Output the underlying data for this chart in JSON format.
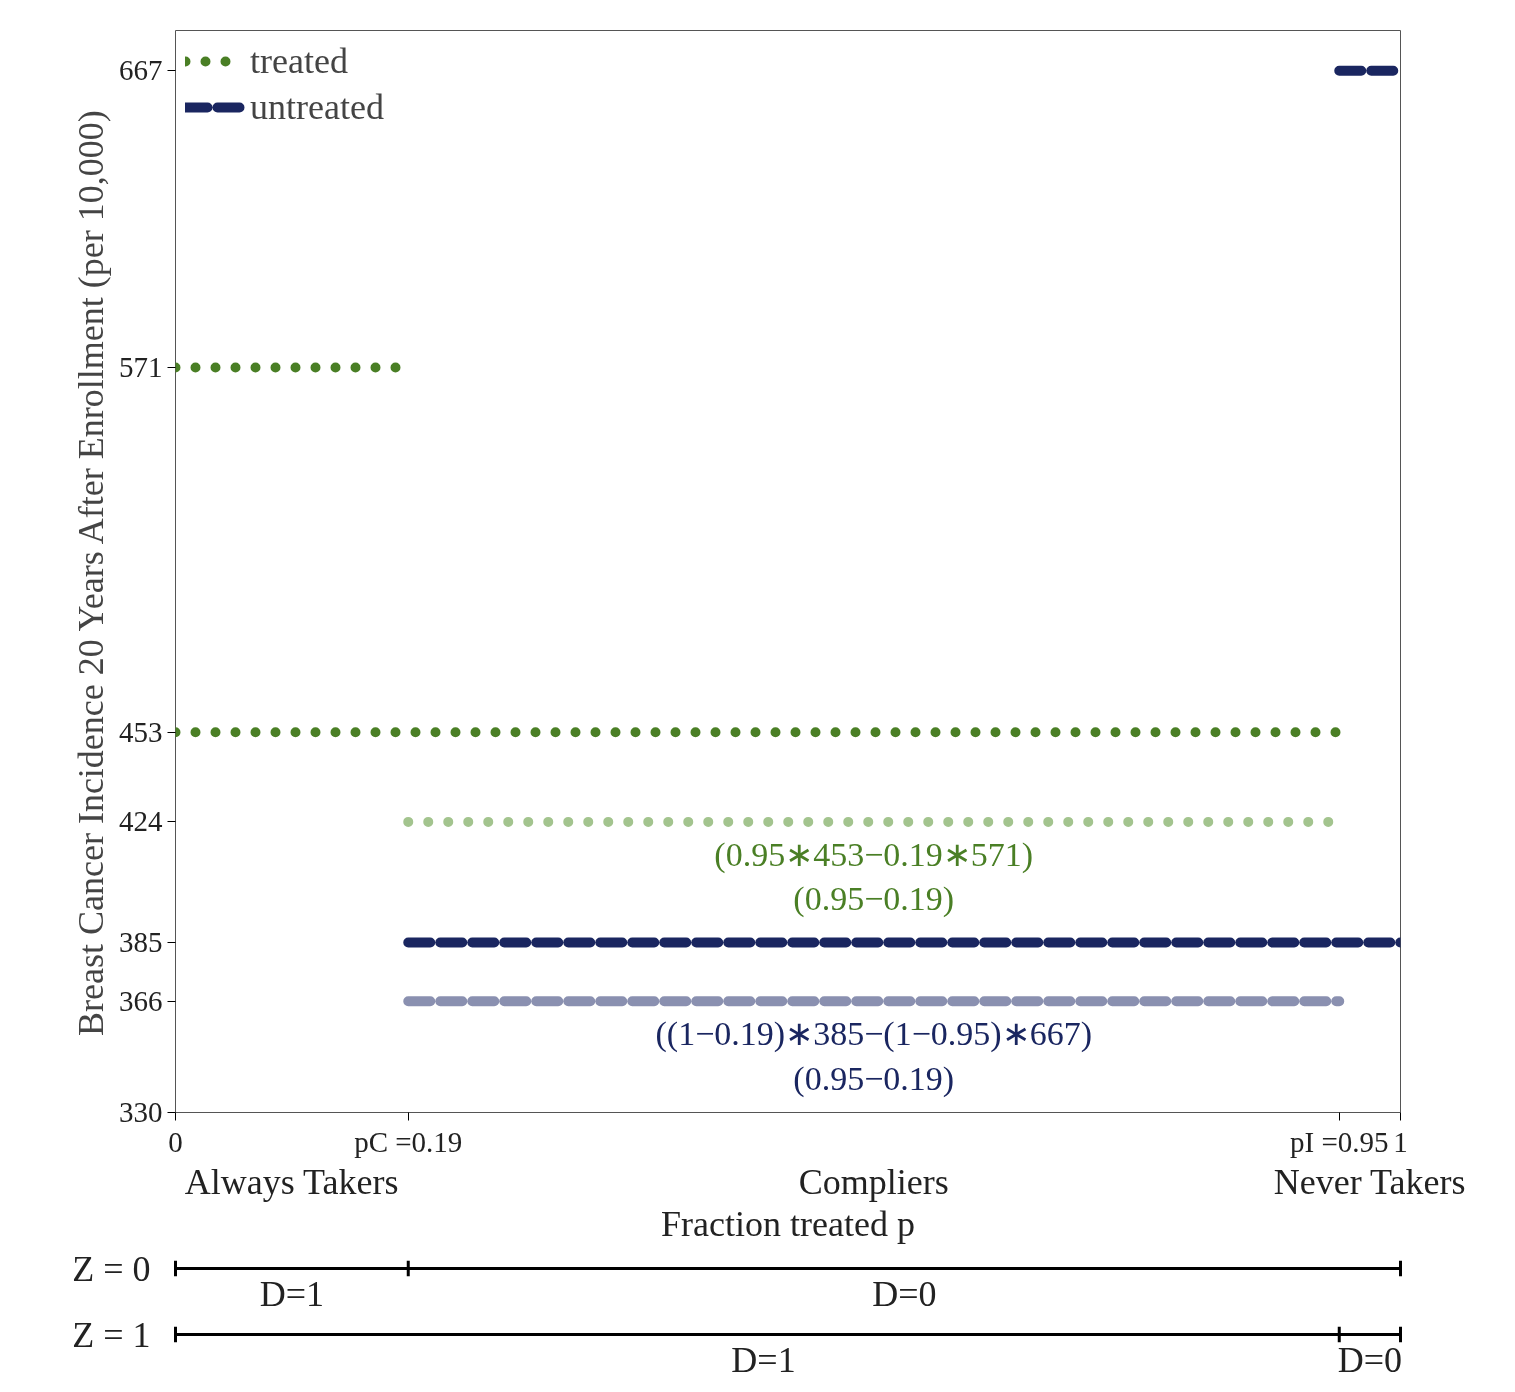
{
  "chart_data": {
    "type": "line",
    "xlabel": "Fraction treated p",
    "ylabel": "Breast Cancer Incidence 20 Years After Enrollment (per 10,000)",
    "xlim": [
      0,
      1
    ],
    "ylim": [
      330,
      680
    ],
    "xticks": [
      0,
      {
        "value": 0.19,
        "label": "pC =0.19"
      },
      {
        "value": 0.95,
        "label": "pI =0.95"
      },
      1
    ],
    "yticks": [
      330,
      366,
      385,
      424,
      453,
      571,
      667
    ],
    "grid": false,
    "legend": "top left",
    "series": [
      {
        "name": "treated",
        "color": "#4a7f25",
        "line_style": "dotted",
        "x": [
          0,
          0.19,
          null,
          0,
          0.95
        ],
        "values": [
          571,
          571,
          null,
          453,
          453
        ]
      },
      {
        "name": "untreated",
        "color": "#1a2660",
        "line_style": "dashed",
        "x": [
          0.95,
          1,
          null,
          0.19,
          1
        ],
        "values": [
          667,
          667,
          null,
          385,
          385
        ]
      },
      {
        "color": "#a3c48e",
        "line_style": "dotted",
        "x": [
          0.19,
          0.95
        ],
        "values": [
          424,
          424
        ]
      },
      {
        "color": "#8a90b0",
        "line_style": "dashed",
        "x": [
          0.19,
          0.95
        ],
        "values": [
          366,
          366
        ]
      }
    ],
    "annotations": [
      {
        "text": "(0.95∗453−0.19∗571)\n(0.95−0.19)",
        "x": 0.57,
        "y": 424
      },
      {
        "text": "((1−0.19)∗385−(1−0.95)∗667)\n(0.95−0.19)",
        "x": 0.57,
        "y": 366
      },
      "Always Takers",
      "Compliers",
      "Never Takers",
      "Z = 0",
      "D=1",
      "D=0",
      "Z = 1",
      "D=1",
      "D=0"
    ]
  }
}
